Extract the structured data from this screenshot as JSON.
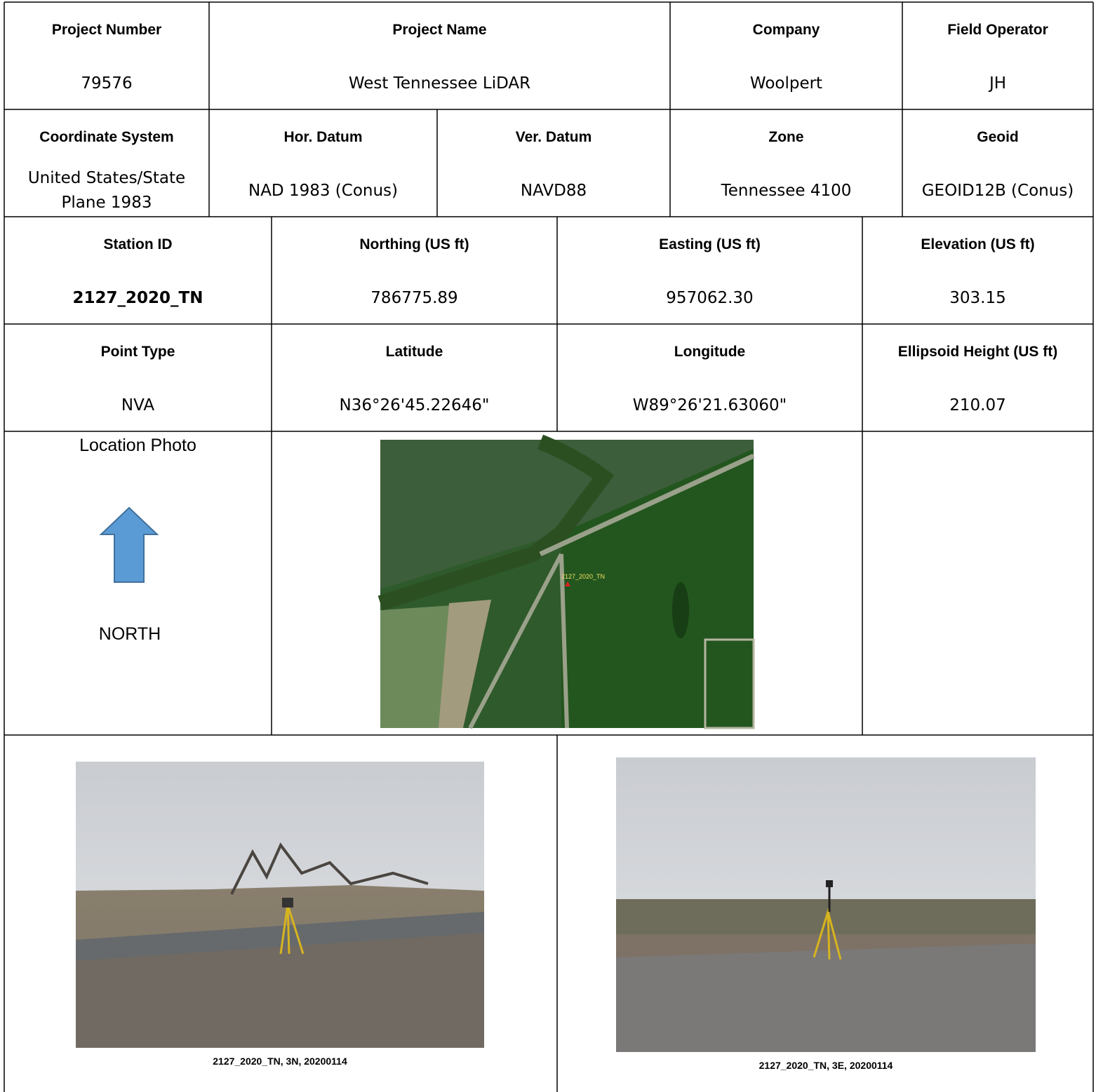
{
  "rows": [
    {
      "cells": [
        {
          "header": "Project Number",
          "value": "79576"
        },
        {
          "header": "Project Name",
          "value": "West Tennessee LiDAR"
        },
        {
          "header": "Company",
          "value": "Woolpert"
        },
        {
          "header": "Field Operator",
          "value": "JH"
        }
      ]
    },
    {
      "cells": [
        {
          "header": "Coordinate System",
          "value": "United States/State Plane 1983"
        },
        {
          "header": "Hor. Datum",
          "value": "NAD 1983 (Conus)"
        },
        {
          "header": "Ver. Datum",
          "value": "NAVD88"
        },
        {
          "header": "Zone",
          "value": "Tennessee 4100"
        },
        {
          "header": "Geoid",
          "value": "GEOID12B (Conus)"
        }
      ]
    },
    {
      "cells": [
        {
          "header": "Station ID",
          "value": "2127_2020_TN"
        },
        {
          "header": "Northing (US ft)",
          "value": "786775.89"
        },
        {
          "header": "Easting (US ft)",
          "value": "957062.30"
        },
        {
          "header": "Elevation (US ft)",
          "value": "303.15"
        }
      ]
    },
    {
      "cells": [
        {
          "header": "Point Type",
          "value": "NVA"
        },
        {
          "header": "Latitude",
          "value": "N36°26'45.22646\""
        },
        {
          "header": "Longitude",
          "value": "W89°26'21.63060\""
        },
        {
          "header": "Ellipsoid Height (US ft)",
          "value": "210.07"
        }
      ]
    }
  ],
  "location": {
    "label": "Location Photo",
    "north": "NORTH",
    "map_label": "2127_2020_TN"
  },
  "photos": [
    {
      "caption": "2127_2020_TN, 3N, 20200114"
    },
    {
      "caption": "2127_2020_TN, 3E, 20200114"
    }
  ]
}
